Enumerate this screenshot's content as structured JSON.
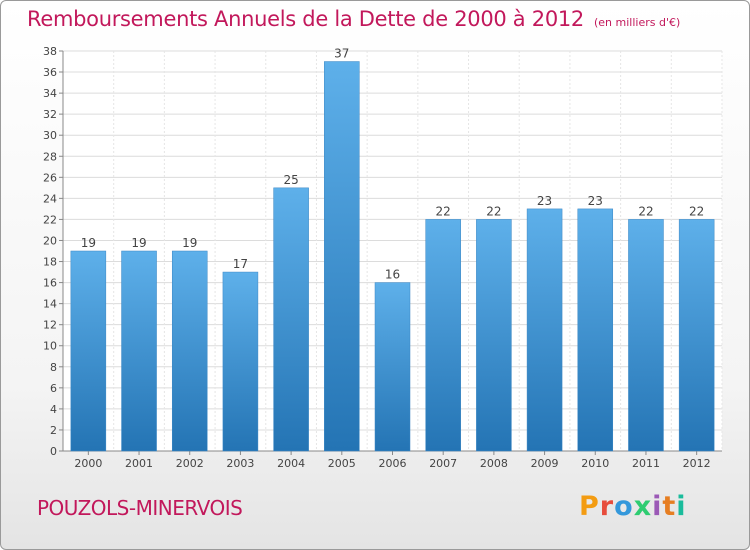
{
  "header": {
    "title": "Remboursements Annuels de la Dette de 2000 à 2012",
    "unit": "(en milliers d'€)"
  },
  "footer": {
    "commune": "POUZOLS-MINERVOIS",
    "logo_text": "Proxiti"
  },
  "colors": {
    "title": "#c2185b",
    "bar_top": "#5eb0ea",
    "bar_bottom": "#2474b4"
  },
  "chart_data": {
    "type": "bar",
    "title": "Remboursements Annuels de la Dette de 2000 à 2012",
    "xlabel": "",
    "ylabel": "",
    "categories": [
      "2000",
      "2001",
      "2002",
      "2003",
      "2004",
      "2005",
      "2006",
      "2007",
      "2008",
      "2009",
      "2010",
      "2011",
      "2012"
    ],
    "values": [
      19,
      19,
      19,
      17,
      25,
      37,
      16,
      22,
      22,
      23,
      23,
      22,
      22
    ],
    "ylim": [
      0,
      38
    ],
    "yticks": [
      0,
      2,
      4,
      6,
      8,
      10,
      12,
      14,
      16,
      18,
      20,
      22,
      24,
      26,
      28,
      30,
      32,
      34,
      36,
      38
    ],
    "grid": true,
    "data_labels": true
  }
}
